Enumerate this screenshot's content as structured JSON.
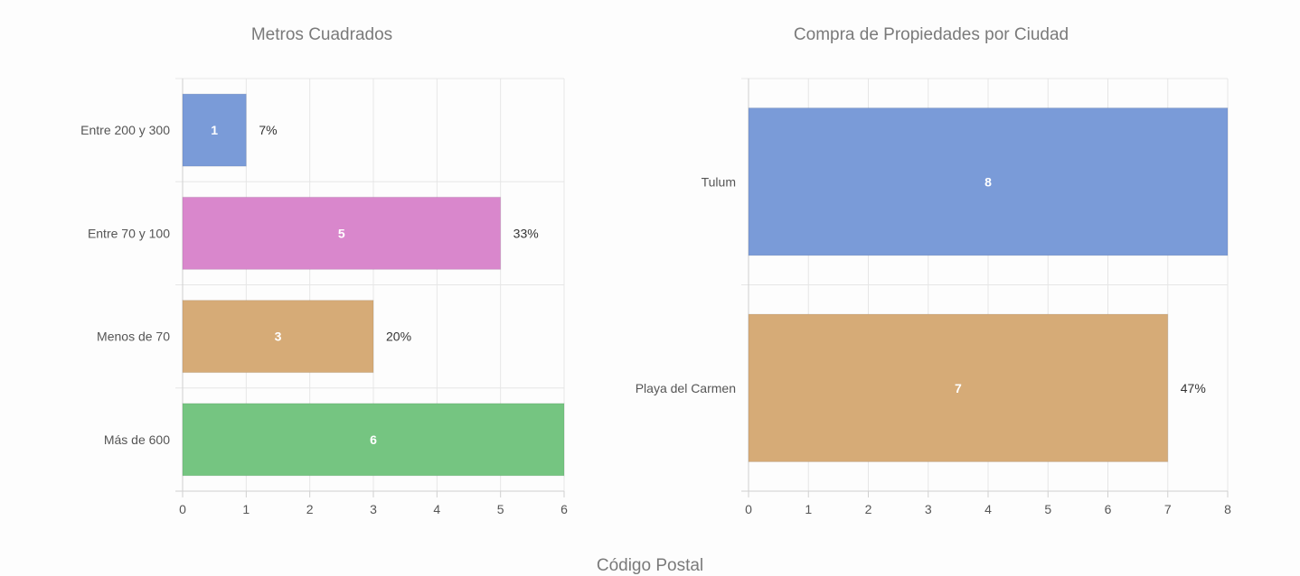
{
  "chart_data": [
    {
      "type": "bar",
      "orientation": "horizontal",
      "title": "Metros Cuadrados",
      "categories": [
        "Entre 200 y 300",
        "Entre 70 y 100",
        "Menos de 70",
        "Más de 600"
      ],
      "values": [
        1,
        5,
        3,
        6
      ],
      "value_labels": [
        "1",
        "5",
        "3",
        "6"
      ],
      "percent_labels": [
        "7%",
        "33%",
        "20%",
        ""
      ],
      "colors": [
        "#7a9bd8",
        "#d987cc",
        "#d6ab77",
        "#75c581"
      ],
      "xlim": [
        0,
        6
      ],
      "x_ticks": [
        "0",
        "1",
        "2",
        "3",
        "4",
        "5",
        "6"
      ],
      "grid": true
    },
    {
      "type": "bar",
      "orientation": "horizontal",
      "title": "Compra de Propiedades por Ciudad",
      "categories": [
        "Tulum",
        "Playa del Carmen"
      ],
      "values": [
        8,
        7
      ],
      "value_labels": [
        "8",
        "7"
      ],
      "percent_labels": [
        "",
        "47%"
      ],
      "colors": [
        "#7a9bd8",
        "#d6ab77"
      ],
      "xlim": [
        0,
        8
      ],
      "x_ticks": [
        "0",
        "1",
        "2",
        "3",
        "4",
        "5",
        "6",
        "7",
        "8"
      ],
      "grid": true
    }
  ],
  "next_chart_title": "Código Postal"
}
